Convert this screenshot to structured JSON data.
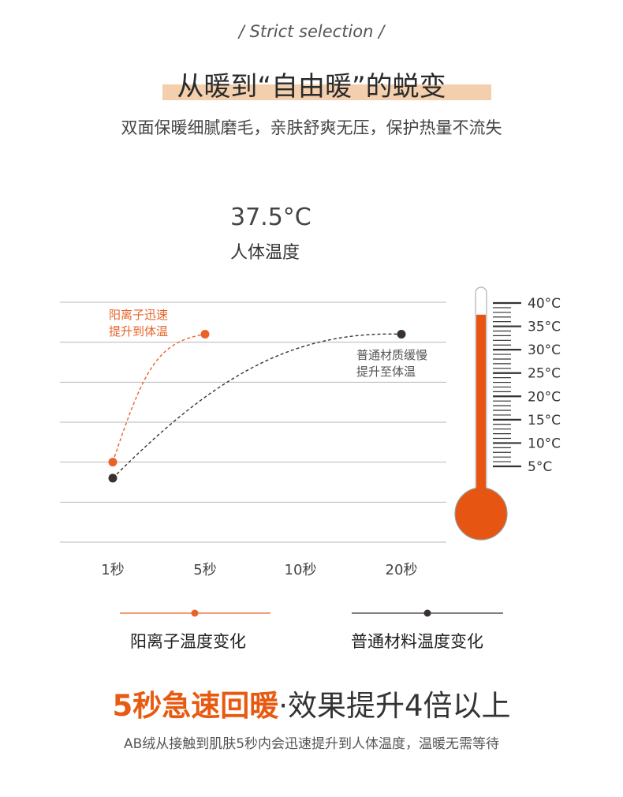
{
  "header": {
    "kicker": "/ Strict selection /",
    "title": "从暖到“自由暖”的蜕变",
    "subtitle": "双面保暖细腻磨毛，亲肤舒爽无压，保护热量不流失"
  },
  "body_temperature": {
    "value": "37.5°C",
    "label": "人体温度"
  },
  "chart_data": {
    "type": "line",
    "categories": [
      "1秒",
      "5秒",
      "10秒",
      "20秒"
    ],
    "series": [
      {
        "name": "阳离子温度变化",
        "color": "#e8632a",
        "points": [
          {
            "x": "1秒",
            "y": 5
          },
          {
            "x": "5秒",
            "y": 37
          }
        ],
        "annotation": [
          "阳离子迅速",
          "提升到体温"
        ]
      },
      {
        "name": "普通材料温度变化",
        "color": "#3a3232",
        "points": [
          {
            "x": "1秒",
            "y": 1
          },
          {
            "x": "20秒",
            "y": 37
          }
        ],
        "annotation": [
          "普通材质缓慢",
          "提升至体温"
        ]
      }
    ],
    "ylim": [
      -15,
      45
    ],
    "grid": true,
    "legend_position": "bottom"
  },
  "thermometer": {
    "ticks": [
      "40°C",
      "35°C",
      "30°C",
      "25°C",
      "20°C",
      "15°C",
      "10°C",
      "5°C"
    ],
    "fill_color": "#e65511",
    "fill_level_c": 37.5
  },
  "footer": {
    "title_highlight": "5秒急速回暖",
    "title_dot": "·",
    "title_rest": "效果提升4倍以上",
    "description": "AB绒从接触到肌肤5秒内会迅速提升到人体温度，温暖无需等待"
  }
}
